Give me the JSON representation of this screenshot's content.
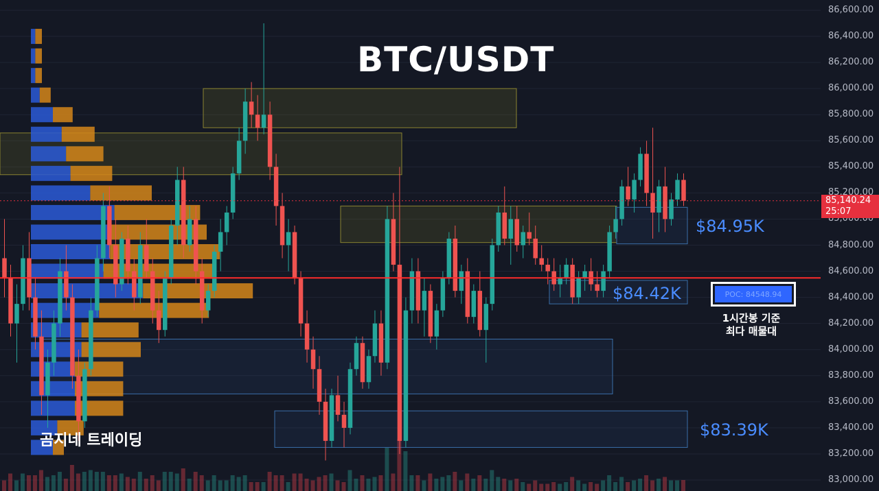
{
  "chart_data": {
    "type": "candlestick",
    "title": "BTC/USDT",
    "watermark": "곰지네 트레이딩",
    "ylim": [
      83000,
      86600
    ],
    "y_ticks": [
      "86,600.00",
      "86,400.00",
      "86,200.00",
      "86,000.00",
      "85,800.00",
      "85,600.00",
      "85,400.00",
      "85,200.00",
      "85,000.00",
      "84,800.00",
      "84,600.00",
      "84,400.00",
      "84,200.00",
      "84,000.00",
      "83,800.00",
      "83,600.00",
      "83,400.00",
      "83,200.00",
      "83,000.00"
    ],
    "y_tick_values": [
      86600,
      86400,
      86200,
      86000,
      85800,
      85600,
      85400,
      85200,
      85000,
      84800,
      84600,
      84400,
      84200,
      84000,
      83800,
      83600,
      83400,
      83200,
      83000
    ],
    "current_price": "85,140.24",
    "countdown": "25:07",
    "poc": {
      "label": "POC: 84548.94",
      "value": 84548.94,
      "note_line1": "1시간봉 기준",
      "note_line2": "최다 매물대"
    },
    "levels": [
      {
        "label": "$84.95K",
        "value": 84950
      },
      {
        "label": "$84.42K",
        "value": 84420
      },
      {
        "label": "$83.39K",
        "value": 83390
      }
    ],
    "zones": [
      {
        "low": 85700,
        "high": 86000,
        "color": "yellow"
      },
      {
        "low": 85340,
        "high": 85660,
        "color": "yellow"
      },
      {
        "low": 84820,
        "high": 85100,
        "color": "yellow"
      },
      {
        "low": 84810,
        "high": 85090,
        "color": "blue"
      },
      {
        "low": 84350,
        "high": 84530,
        "color": "blue"
      },
      {
        "low": 83660,
        "high": 84080,
        "color": "blue"
      },
      {
        "low": 83250,
        "high": 83530,
        "color": "blue"
      }
    ],
    "volume_profile": [
      {
        "price": 86400,
        "buy": 0.02,
        "sell": 0.03
      },
      {
        "price": 86250,
        "buy": 0.02,
        "sell": 0.03
      },
      {
        "price": 86100,
        "buy": 0.02,
        "sell": 0.03
      },
      {
        "price": 85950,
        "buy": 0.04,
        "sell": 0.05
      },
      {
        "price": 85800,
        "buy": 0.1,
        "sell": 0.09
      },
      {
        "price": 85650,
        "buy": 0.14,
        "sell": 0.15
      },
      {
        "price": 85500,
        "buy": 0.16,
        "sell": 0.17
      },
      {
        "price": 85350,
        "buy": 0.18,
        "sell": 0.19
      },
      {
        "price": 85200,
        "buy": 0.27,
        "sell": 0.28
      },
      {
        "price": 85050,
        "buy": 0.38,
        "sell": 0.39
      },
      {
        "price": 84900,
        "buy": 0.35,
        "sell": 0.45
      },
      {
        "price": 84750,
        "buy": 0.36,
        "sell": 0.5
      },
      {
        "price": 84600,
        "buy": 0.33,
        "sell": 0.5
      },
      {
        "price": 84450,
        "buy": 0.51,
        "sell": 0.5
      },
      {
        "price": 84300,
        "buy": 0.31,
        "sell": 0.5
      },
      {
        "price": 84150,
        "buy": 0.23,
        "sell": 0.26
      },
      {
        "price": 84000,
        "buy": 0.23,
        "sell": 0.27
      },
      {
        "price": 83850,
        "buy": 0.2,
        "sell": 0.22
      },
      {
        "price": 83700,
        "buy": 0.2,
        "sell": 0.22
      },
      {
        "price": 83550,
        "buy": 0.2,
        "sell": 0.22
      },
      {
        "price": 83400,
        "buy": 0.12,
        "sell": 0.12
      },
      {
        "price": 83250,
        "buy": 0.1,
        "sell": 0.05
      }
    ],
    "candles": [
      [
        84700,
        85000,
        84400,
        84550
      ],
      [
        84550,
        84650,
        84100,
        84200
      ],
      [
        84200,
        84500,
        83900,
        84350
      ],
      [
        84350,
        84800,
        84300,
        84700
      ],
      [
        84700,
        84900,
        84300,
        84400
      ],
      [
        84400,
        84550,
        84000,
        84100
      ],
      [
        84100,
        84300,
        83500,
        83650
      ],
      [
        83650,
        84000,
        83400,
        83900
      ],
      [
        83900,
        84300,
        83800,
        84200
      ],
      [
        84200,
        84700,
        84100,
        84600
      ],
      [
        84600,
        84800,
        84300,
        84400
      ],
      [
        84400,
        84500,
        83700,
        83800
      ],
      [
        83800,
        84000,
        83300,
        83450
      ],
      [
        83450,
        83900,
        83400,
        83850
      ],
      [
        83850,
        84400,
        83800,
        84300
      ],
      [
        84300,
        84800,
        84250,
        84700
      ],
      [
        84700,
        85200,
        84600,
        85100
      ],
      [
        85100,
        85250,
        84700,
        84800
      ],
      [
        84800,
        85000,
        84400,
        84500
      ],
      [
        84500,
        84900,
        84450,
        84850
      ],
      [
        84850,
        84950,
        84500,
        84600
      ],
      [
        84600,
        84700,
        84300,
        84400
      ],
      [
        84400,
        84900,
        84350,
        84800
      ],
      [
        84800,
        85000,
        84550,
        84600
      ],
      [
        84600,
        84700,
        84200,
        84300
      ],
      [
        84300,
        84450,
        84050,
        84150
      ],
      [
        84150,
        84600,
        84100,
        84550
      ],
      [
        84550,
        85000,
        84500,
        84950
      ],
      [
        84950,
        85400,
        84800,
        85300
      ],
      [
        85300,
        85400,
        84700,
        84800
      ],
      [
        84800,
        85100,
        84750,
        85000
      ],
      [
        85000,
        85100,
        84500,
        84600
      ],
      [
        84600,
        84700,
        84200,
        84300
      ],
      [
        84300,
        84500,
        84250,
        84450
      ],
      [
        84450,
        84800,
        84400,
        84750
      ],
      [
        84750,
        85000,
        84600,
        84900
      ],
      [
        84900,
        85100,
        84800,
        85050
      ],
      [
        85050,
        85400,
        85000,
        85350
      ],
      [
        85350,
        85700,
        85300,
        85600
      ],
      [
        85600,
        86000,
        85500,
        85900
      ],
      [
        85900,
        86050,
        85700,
        85800
      ],
      [
        85800,
        85950,
        85600,
        85700
      ],
      [
        85700,
        86500,
        85650,
        85800
      ],
      [
        85800,
        85900,
        85300,
        85400
      ],
      [
        85400,
        85500,
        84950,
        85100
      ],
      [
        85100,
        85200,
        84700,
        84800
      ],
      [
        84800,
        85000,
        84600,
        84900
      ],
      [
        84900,
        84950,
        84500,
        84550
      ],
      [
        84550,
        84600,
        84100,
        84200
      ],
      [
        84200,
        84300,
        83900,
        84000
      ],
      [
        84000,
        84100,
        83700,
        83850
      ],
      [
        83850,
        83950,
        83500,
        83600
      ],
      [
        83600,
        83700,
        83150,
        83300
      ],
      [
        83300,
        83700,
        83250,
        83650
      ],
      [
        83650,
        83800,
        83450,
        83500
      ],
      [
        83500,
        83600,
        83250,
        83400
      ],
      [
        83400,
        83900,
        83350,
        83850
      ],
      [
        83850,
        84100,
        83800,
        84050
      ],
      [
        84050,
        84100,
        83700,
        83750
      ],
      [
        83750,
        84000,
        83700,
        83950
      ],
      [
        83950,
        84300,
        83900,
        84200
      ],
      [
        84200,
        84300,
        83800,
        83900
      ],
      [
        83900,
        85100,
        83850,
        85000
      ],
      [
        85000,
        85200,
        84600,
        84650
      ],
      [
        84650,
        85400,
        83200,
        83300
      ],
      [
        83300,
        84400,
        83250,
        84300
      ],
      [
        84300,
        84700,
        84200,
        84600
      ],
      [
        84600,
        84700,
        84200,
        84300
      ],
      [
        84300,
        84550,
        84100,
        84450
      ],
      [
        84450,
        84500,
        84050,
        84100
      ],
      [
        84100,
        84350,
        84000,
        84300
      ],
      [
        84300,
        84600,
        84250,
        84550
      ],
      [
        84550,
        84900,
        84500,
        84850
      ],
      [
        84850,
        84950,
        84400,
        84450
      ],
      [
        84450,
        84650,
        84350,
        84600
      ],
      [
        84600,
        84700,
        84200,
        84250
      ],
      [
        84250,
        84500,
        84200,
        84450
      ],
      [
        84450,
        84600,
        84100,
        84150
      ],
      [
        84150,
        84400,
        83900,
        84350
      ],
      [
        84350,
        84850,
        84300,
        84800
      ],
      [
        84800,
        85100,
        84750,
        85050
      ],
      [
        85050,
        85250,
        84800,
        84850
      ],
      [
        84850,
        85100,
        84650,
        85000
      ],
      [
        85000,
        85100,
        84750,
        84800
      ],
      [
        84800,
        84950,
        84700,
        84900
      ],
      [
        84900,
        85050,
        84800,
        84850
      ],
      [
        84850,
        84950,
        84650,
        84700
      ],
      [
        84700,
        84800,
        84600,
        84650
      ],
      [
        84650,
        84700,
        84500,
        84600
      ],
      [
        84600,
        84700,
        84450,
        84500
      ],
      [
        84500,
        84650,
        84400,
        84550
      ],
      [
        84550,
        84700,
        84500,
        84650
      ],
      [
        84650,
        84700,
        84350,
        84400
      ],
      [
        84400,
        84600,
        84350,
        84550
      ],
      [
        84550,
        84650,
        84450,
        84600
      ],
      [
        84600,
        84700,
        84450,
        84500
      ],
      [
        84500,
        84600,
        84400,
        84450
      ],
      [
        84450,
        84650,
        84400,
        84600
      ],
      [
        84600,
        84950,
        84550,
        84900
      ],
      [
        84900,
        85100,
        84850,
        85000
      ],
      [
        85000,
        85300,
        84950,
        85250
      ],
      [
        85250,
        85400,
        85100,
        85150
      ],
      [
        85150,
        85350,
        85050,
        85300
      ],
      [
        85300,
        85550,
        85250,
        85500
      ],
      [
        85500,
        85600,
        85100,
        85200
      ],
      [
        85200,
        85700,
        84850,
        85050
      ],
      [
        85050,
        85300,
        84900,
        85250
      ],
      [
        85250,
        85400,
        84900,
        85000
      ],
      [
        85000,
        85200,
        84950,
        85150
      ],
      [
        85150,
        85350,
        85100,
        85300
      ],
      [
        85300,
        85350,
        85100,
        85140
      ]
    ]
  }
}
